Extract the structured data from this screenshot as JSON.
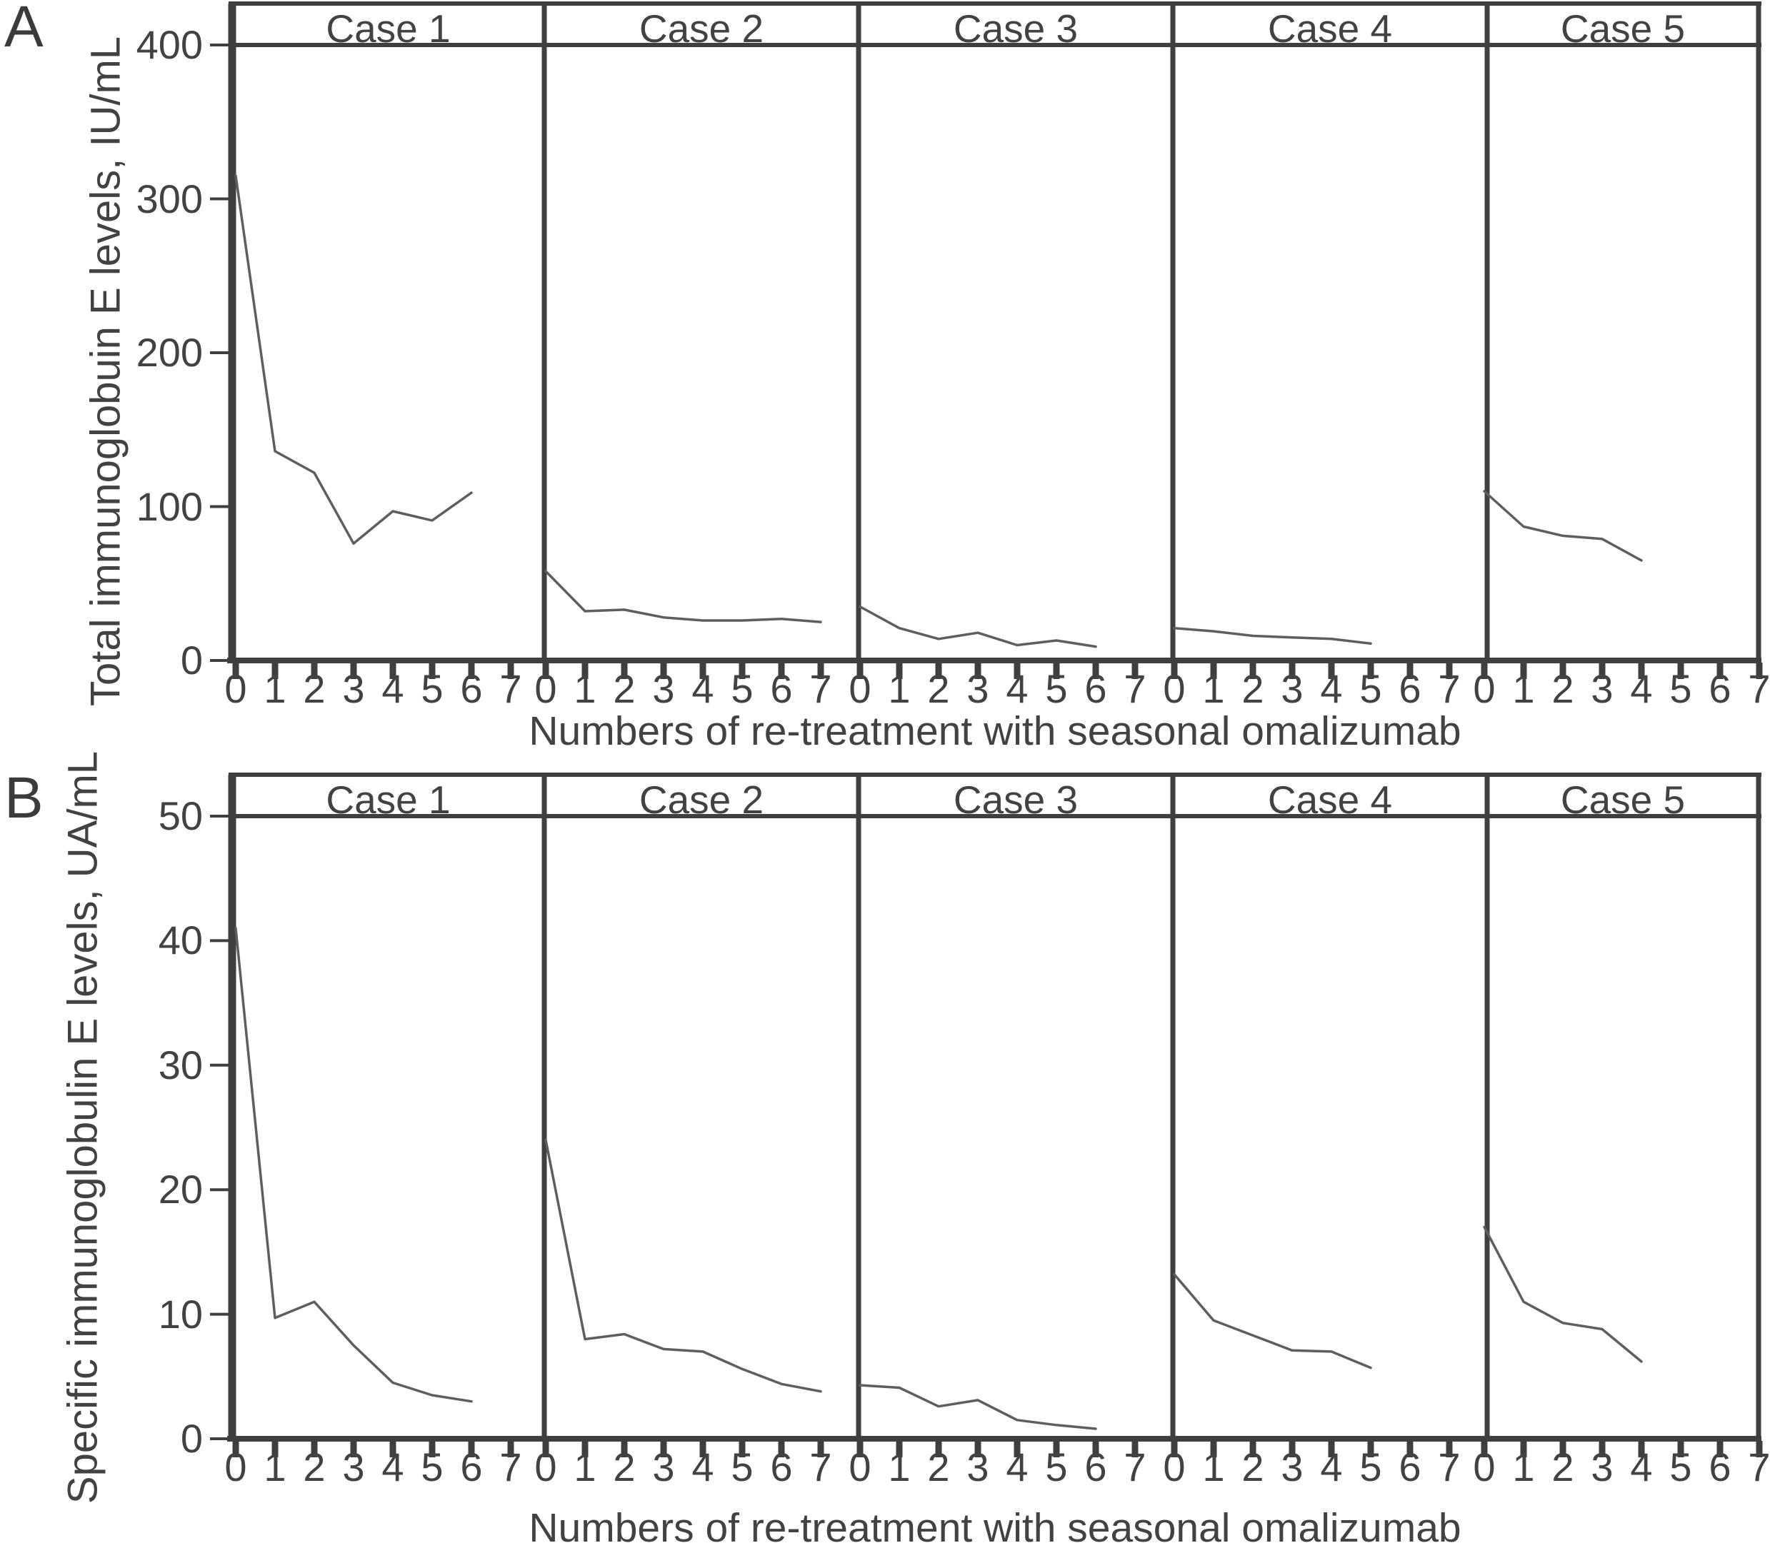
{
  "chart_data": [
    {
      "type": "line",
      "panel_letter": "A",
      "ylabel": "Total immunoglobuin E levels, IU/mL",
      "xlabel": "Numbers of re-treatment with seasonal omalizumab",
      "ylim": [
        0,
        400
      ],
      "yticks": [
        0,
        100,
        200,
        300,
        400
      ],
      "xticks_per_case": [
        0,
        1,
        2,
        3,
        4,
        5,
        6,
        7
      ],
      "grid": "off",
      "legend": "none",
      "line_color": "#5d5e60",
      "axis_color": "#3e3f41",
      "cases": [
        {
          "name": "Case 1",
          "x": [
            0,
            1,
            2,
            3,
            4,
            5,
            6
          ],
          "y": [
            315,
            136,
            122,
            76,
            97,
            91,
            109
          ]
        },
        {
          "name": "Case 2",
          "x": [
            0,
            1,
            2,
            3,
            4,
            5,
            6,
            7
          ],
          "y": [
            58,
            32,
            33,
            28,
            26,
            26,
            27,
            25
          ]
        },
        {
          "name": "Case 3",
          "x": [
            0,
            1,
            2,
            3,
            4,
            5,
            6
          ],
          "y": [
            35,
            21,
            14,
            18,
            10,
            13,
            9
          ]
        },
        {
          "name": "Case 4",
          "x": [
            0,
            1,
            2,
            3,
            4,
            5
          ],
          "y": [
            21,
            19,
            16,
            15,
            14,
            11
          ]
        },
        {
          "name": "Case 5",
          "x": [
            0,
            1,
            2,
            3,
            4
          ],
          "y": [
            110,
            87,
            81,
            79,
            65
          ]
        }
      ]
    },
    {
      "type": "line",
      "panel_letter": "B",
      "ylabel": "Specific immunoglobulin E levels, UA/mL",
      "xlabel": "Numbers of re-treatment with seasonal omalizumab",
      "ylim": [
        0,
        50
      ],
      "yticks": [
        0,
        10,
        20,
        30,
        40,
        50
      ],
      "xticks_per_case": [
        0,
        1,
        2,
        3,
        4,
        5,
        6,
        7
      ],
      "grid": "off",
      "legend": "none",
      "line_color": "#5d5e60",
      "axis_color": "#3e3f41",
      "cases": [
        {
          "name": "Case 1",
          "x": [
            0,
            1,
            2,
            3,
            4,
            5,
            6
          ],
          "y": [
            41,
            9.7,
            11,
            7.5,
            4.5,
            3.5,
            3
          ]
        },
        {
          "name": "Case 2",
          "x": [
            0,
            1,
            2,
            3,
            4,
            5,
            6,
            7
          ],
          "y": [
            24,
            8,
            8.4,
            7.2,
            7,
            5.6,
            4.4,
            3.8
          ]
        },
        {
          "name": "Case 3",
          "x": [
            0,
            1,
            2,
            3,
            4,
            5,
            6
          ],
          "y": [
            4.3,
            4.1,
            2.6,
            3.1,
            1.5,
            1.1,
            0.8
          ]
        },
        {
          "name": "Case 4",
          "x": [
            0,
            1,
            2,
            3,
            4,
            5
          ],
          "y": [
            13.2,
            9.5,
            8.3,
            7.1,
            7,
            5.7
          ]
        },
        {
          "name": "Case 5",
          "x": [
            0,
            1,
            2,
            3,
            4
          ],
          "y": [
            17,
            11,
            9.3,
            8.8,
            6.2
          ]
        }
      ]
    }
  ]
}
